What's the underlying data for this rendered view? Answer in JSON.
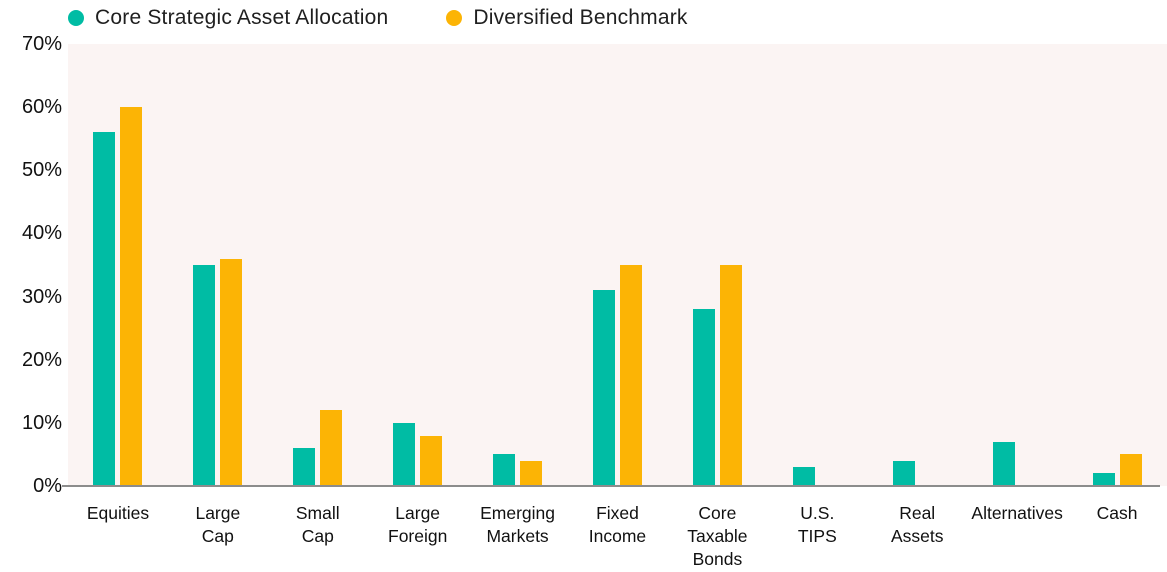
{
  "chart_data": {
    "type": "bar",
    "title": "",
    "xlabel": "",
    "ylabel": "",
    "categories": [
      "Equities",
      "Large Cap",
      "Small Cap",
      "Large Foreign",
      "Emerging Markets",
      "Fixed Income",
      "Core Taxable Bonds",
      "U.S. TIPS",
      "Real Assets",
      "Alternatives",
      "Cash"
    ],
    "category_label_lines": [
      [
        "Equities"
      ],
      [
        "Large",
        "Cap"
      ],
      [
        "Small",
        "Cap"
      ],
      [
        "Large",
        "Foreign"
      ],
      [
        "Emerging",
        "Markets"
      ],
      [
        "Fixed",
        "Income"
      ],
      [
        "Core",
        "Taxable",
        "Bonds"
      ],
      [
        "U.S.",
        "TIPS"
      ],
      [
        "Real",
        "Assets"
      ],
      [
        "Alternatives"
      ],
      [
        "Cash"
      ]
    ],
    "series": [
      {
        "name": "Core Strategic Asset Allocation",
        "color": "#00bca4",
        "values": [
          56,
          35,
          6,
          10,
          5,
          31,
          28,
          3,
          4,
          7,
          2
        ]
      },
      {
        "name": "Diversified Benchmark",
        "color": "#fcb405",
        "values": [
          60,
          36,
          12,
          8,
          4,
          35,
          35,
          0,
          0,
          0,
          5
        ]
      }
    ],
    "ylim": [
      0,
      70
    ],
    "ytick_values": [
      70,
      60,
      50,
      40,
      30,
      20,
      10,
      0
    ],
    "ytick_labels": [
      "70%",
      "60%",
      "50%",
      "40%",
      "30%",
      "20%",
      "10%",
      "0%"
    ],
    "grid": false,
    "legend_position": "top-left",
    "plot_background": "#fbf4f3",
    "axis_line_color": "#8c8c8c",
    "value_suffix": "%"
  }
}
